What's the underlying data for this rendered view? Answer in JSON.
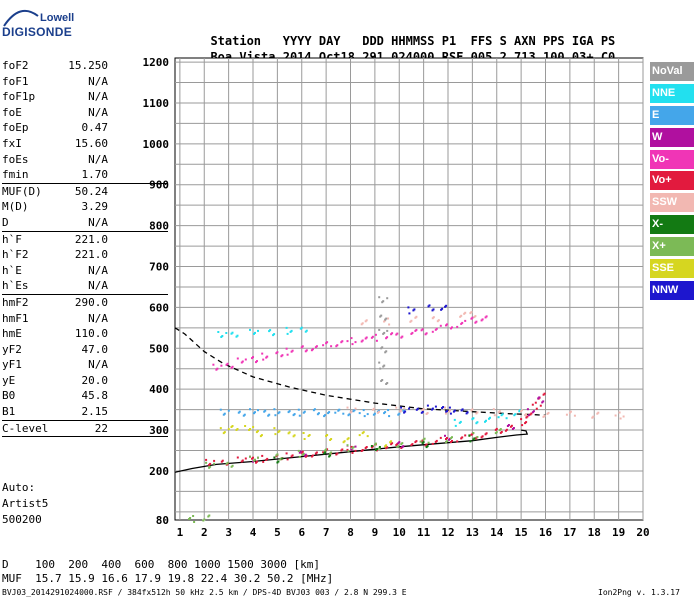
{
  "logo": {
    "line1": "Lowell",
    "line2": "DIGISONDE"
  },
  "header": {
    "labels": [
      "Station",
      "YYYY",
      "DAY",
      "DDD",
      "HHMMSS",
      "P1",
      "FFS",
      "S",
      "AXN",
      "PPS",
      "IGA",
      "PS"
    ],
    "values": [
      "Boa Vista",
      "2014",
      "Oct18",
      "291",
      "024000",
      "RSF",
      "005",
      "2",
      "713",
      "100",
      "03+",
      "C0"
    ]
  },
  "params": [
    {
      "name": "foF2",
      "value": "15.250"
    },
    {
      "name": "foF1",
      "value": "N/A"
    },
    {
      "name": "foF1p",
      "value": "N/A"
    },
    {
      "name": "foE",
      "value": "N/A"
    },
    {
      "name": "foEp",
      "value": "0.47"
    },
    {
      "name": "fxI",
      "value": "15.60"
    },
    {
      "name": "foEs",
      "value": "N/A"
    },
    {
      "name": "fmin",
      "value": "1.70"
    },
    {
      "name": "MUF(D)",
      "value": "50.24",
      "sep": true
    },
    {
      "name": "M(D)",
      "value": "3.29"
    },
    {
      "name": "D",
      "value": "N/A"
    },
    {
      "name": "h`F",
      "value": "221.0",
      "sep": true
    },
    {
      "name": "h`F2",
      "value": "221.0"
    },
    {
      "name": "h`E",
      "value": "N/A"
    },
    {
      "name": "h`Es",
      "value": "N/A"
    },
    {
      "name": "hmF2",
      "value": "290.0",
      "sep": true
    },
    {
      "name": "hmF1",
      "value": "N/A"
    },
    {
      "name": "hmE",
      "value": "110.0"
    },
    {
      "name": "yF2",
      "value": "47.0"
    },
    {
      "name": "yF1",
      "value": "N/A"
    },
    {
      "name": "yE",
      "value": "20.0"
    },
    {
      "name": "B0",
      "value": "45.8"
    },
    {
      "name": "B1",
      "value": "2.15"
    },
    {
      "name": "C-level",
      "value": "22",
      "sep": true
    }
  ],
  "auto": {
    "label": "Auto:",
    "artist": "Artist5",
    "version": "500200"
  },
  "legend": [
    {
      "label": "NoVal",
      "color": "#9a9a9a"
    },
    {
      "label": "NNE",
      "color": "#22e0ef"
    },
    {
      "label": "E",
      "color": "#44a6ea"
    },
    {
      "label": "W",
      "color": "#b0109f"
    },
    {
      "label": "Vo-",
      "color": "#f035b6"
    },
    {
      "label": "Vo+",
      "color": "#e21a3e"
    },
    {
      "label": "SSW",
      "color": "#f2b8b2"
    },
    {
      "label": "X-",
      "color": "#137a13"
    },
    {
      "label": "X+",
      "color": "#7cba56"
    },
    {
      "label": "SSE",
      "color": "#d6d620"
    },
    {
      "label": "NNW",
      "color": "#1d16ce"
    }
  ],
  "muf_table": {
    "d_label": "D",
    "distances": [
      "100",
      "200",
      "400",
      "600",
      "800",
      "1000",
      "1500",
      "3000"
    ],
    "d_unit": "[km]",
    "muf_label": "MUF",
    "mufs": [
      "15.7",
      "15.9",
      "16.6",
      "17.9",
      "19.8",
      "22.4",
      "30.2",
      "50.2"
    ],
    "muf_unit": "[MHz]"
  },
  "footer": {
    "left": "BVJ03_2014291024000.RSF / 384fx512h 50 kHz 2.5 km / DPS-4D BVJ03 003 / 2.8 N 299.3 E",
    "right": "Ion2Png v. 1.3.17"
  },
  "chart_data": {
    "type": "scatter",
    "x_ticks": [
      1,
      2,
      3,
      4,
      5,
      6,
      7,
      8,
      9,
      10,
      11,
      12,
      13,
      14,
      15,
      16,
      17,
      18,
      19,
      20
    ],
    "y_ticks": [
      80,
      200,
      300,
      400,
      500,
      600,
      700,
      800,
      900,
      1000,
      1100,
      1200
    ],
    "xlim": [
      0.8,
      20.0
    ],
    "ylim": [
      80,
      1210
    ],
    "grid": true,
    "series": [
      {
        "name": "Vo+",
        "color": "#e21a3e",
        "points": [
          [
            2.2,
            222
          ],
          [
            2.8,
            225
          ],
          [
            3.5,
            228
          ],
          [
            4,
            230
          ],
          [
            4.5,
            232
          ],
          [
            5,
            236
          ],
          [
            5.5,
            238
          ],
          [
            6,
            242
          ],
          [
            6.5,
            245
          ],
          [
            7,
            248
          ],
          [
            7.5,
            250
          ],
          [
            8,
            254
          ],
          [
            8.5,
            256
          ],
          [
            9,
            260
          ],
          [
            9.5,
            263
          ],
          [
            10,
            266
          ],
          [
            10.5,
            268
          ],
          [
            11,
            272
          ],
          [
            11.5,
            276
          ],
          [
            12,
            278
          ],
          [
            12.5,
            282
          ],
          [
            13,
            286
          ],
          [
            13.5,
            292
          ],
          [
            14,
            298
          ],
          [
            14.5,
            308
          ],
          [
            15,
            322
          ],
          [
            15.3,
            338
          ],
          [
            15.6,
            362
          ],
          [
            15.8,
            384
          ]
        ]
      },
      {
        "name": "Vo-",
        "color": "#f035b6",
        "points": [
          [
            2.5,
            455
          ],
          [
            3,
            462
          ],
          [
            3.5,
            470
          ],
          [
            4,
            476
          ],
          [
            4.5,
            482
          ],
          [
            5,
            488
          ],
          [
            5.5,
            494
          ],
          [
            6,
            500
          ],
          [
            6.5,
            505
          ],
          [
            7,
            510
          ],
          [
            7.5,
            515
          ],
          [
            8,
            520
          ],
          [
            8.5,
            524
          ],
          [
            9,
            528
          ],
          [
            9.5,
            532
          ],
          [
            10,
            536
          ],
          [
            10.5,
            540
          ],
          [
            11,
            544
          ],
          [
            11.5,
            550
          ],
          [
            12,
            556
          ],
          [
            12.5,
            562
          ],
          [
            13,
            570
          ],
          [
            13.5,
            578
          ]
        ]
      },
      {
        "name": "E",
        "color": "#44a6ea",
        "points": [
          [
            2.8,
            345
          ],
          [
            3.5,
            345
          ],
          [
            4,
            346
          ],
          [
            4.5,
            345
          ],
          [
            5,
            346
          ],
          [
            5.5,
            344
          ],
          [
            6,
            345
          ],
          [
            6.5,
            346
          ],
          [
            7,
            344
          ],
          [
            7.5,
            345
          ],
          [
            8,
            346
          ],
          [
            8.5,
            344
          ],
          [
            9,
            345
          ],
          [
            9.5,
            344
          ],
          [
            10,
            345
          ]
        ]
      },
      {
        "name": "NNW",
        "color": "#1d16ce",
        "points": [
          [
            10.2,
            350
          ],
          [
            10.8,
            352
          ],
          [
            11.3,
            355
          ],
          [
            11.8,
            354
          ],
          [
            12.2,
            350
          ],
          [
            12.6,
            348
          ],
          [
            10.5,
            595
          ],
          [
            11.2,
            600
          ],
          [
            11.8,
            604
          ]
        ]
      },
      {
        "name": "NNE",
        "color": "#22e0ef",
        "points": [
          [
            2.7,
            535
          ],
          [
            3.2,
            538
          ],
          [
            4,
            540
          ],
          [
            4.7,
            542
          ],
          [
            5.5,
            545
          ],
          [
            6,
            548
          ],
          [
            12.4,
            320
          ],
          [
            13,
            324
          ],
          [
            13.6,
            330
          ],
          [
            14.2,
            334
          ],
          [
            14.8,
            346
          ]
        ]
      },
      {
        "name": "SSW",
        "color": "#f2b8b2",
        "points": [
          [
            8,
            350
          ],
          [
            9,
            352
          ],
          [
            10,
            350
          ],
          [
            11,
            349
          ],
          [
            12,
            350
          ],
          [
            13,
            348
          ],
          [
            14,
            346
          ],
          [
            15,
            344
          ],
          [
            16,
            342
          ],
          [
            17,
            340
          ],
          [
            18,
            340
          ],
          [
            19,
            338
          ],
          [
            8.5,
            566
          ],
          [
            9.5,
            568
          ],
          [
            10.5,
            572
          ],
          [
            11.5,
            576
          ],
          [
            12.5,
            582
          ],
          [
            13,
            586
          ]
        ]
      },
      {
        "name": "SSE",
        "color": "#d6d620",
        "points": [
          [
            2.8,
            300
          ],
          [
            3.2,
            310
          ],
          [
            3.8,
            305
          ],
          [
            4.2,
            295
          ],
          [
            5,
            300
          ],
          [
            5.5,
            292
          ],
          [
            6.2,
            288
          ],
          [
            7,
            283
          ],
          [
            7.8,
            280
          ],
          [
            8.5,
            290
          ],
          [
            9.5,
            270
          ]
        ]
      },
      {
        "name": "W",
        "color": "#b0109f",
        "points": [
          [
            4,
            230
          ],
          [
            6,
            247
          ],
          [
            8,
            257
          ],
          [
            10,
            268
          ],
          [
            12,
            281
          ],
          [
            14.5,
            310
          ],
          [
            15.4,
            346
          ],
          [
            15.7,
            375
          ]
        ]
      },
      {
        "name": "X+",
        "color": "#7cba56",
        "points": [
          [
            2.2,
            215
          ],
          [
            3,
            220
          ],
          [
            4,
            230
          ],
          [
            5,
            238
          ],
          [
            6,
            244
          ],
          [
            7,
            250
          ],
          [
            8,
            258
          ],
          [
            9,
            262
          ],
          [
            10,
            268
          ],
          [
            11,
            274
          ],
          [
            12,
            280
          ],
          [
            13,
            288
          ],
          [
            14,
            300
          ],
          [
            1.5,
            85
          ],
          [
            2,
            86
          ]
        ]
      },
      {
        "name": "X-",
        "color": "#137a13",
        "points": [
          [
            5,
            228
          ],
          [
            7,
            245
          ],
          [
            9,
            256
          ],
          [
            11,
            268
          ],
          [
            13,
            282
          ]
        ]
      },
      {
        "name": "NoVal",
        "color": "#9a9a9a",
        "points": [
          [
            9.3,
            620
          ],
          [
            9.3,
            580
          ],
          [
            9.3,
            540
          ],
          [
            9.3,
            500
          ],
          [
            9.3,
            460
          ],
          [
            9.3,
            420
          ]
        ]
      }
    ],
    "profiles": [
      {
        "style": "solid",
        "color": "#000",
        "points": [
          [
            0.8,
            197
          ],
          [
            1.5,
            206
          ],
          [
            2.5,
            216
          ],
          [
            4,
            223
          ],
          [
            6,
            235
          ],
          [
            8,
            247
          ],
          [
            10,
            259
          ],
          [
            12,
            269
          ],
          [
            13,
            274
          ],
          [
            14,
            282
          ],
          [
            14.8,
            288
          ],
          [
            15.25,
            290
          ],
          [
            15.2,
            298
          ],
          [
            15,
            300
          ]
        ]
      },
      {
        "style": "dashed",
        "color": "#000",
        "points": [
          [
            0.8,
            550
          ],
          [
            1.2,
            535
          ],
          [
            2,
            492
          ],
          [
            2.8,
            462
          ],
          [
            4,
            430
          ],
          [
            5.5,
            405
          ],
          [
            7,
            385
          ],
          [
            9,
            366
          ],
          [
            11,
            352
          ],
          [
            13,
            345
          ],
          [
            14.5,
            340
          ],
          [
            15.4,
            338
          ],
          [
            16,
            336
          ]
        ]
      }
    ]
  }
}
